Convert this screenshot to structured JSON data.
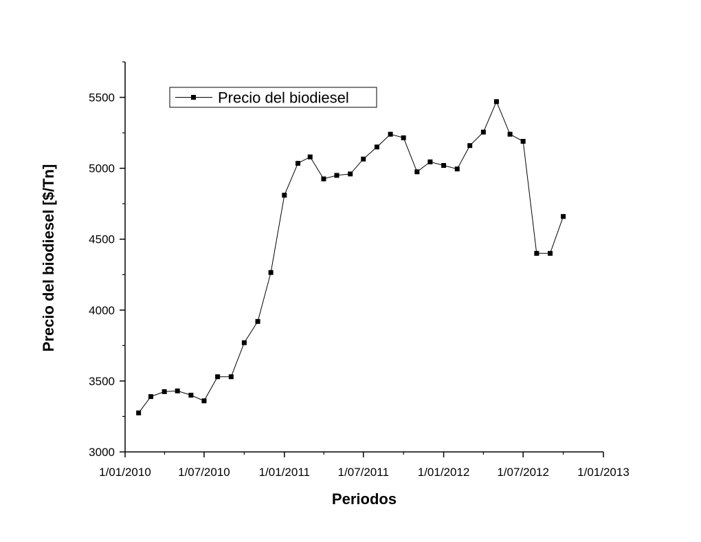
{
  "chart_data": {
    "type": "line",
    "xlabel": "Periodos",
    "ylabel": "Precio del biodiesel [$/Tn]",
    "x_ticks": [
      "1/01/2010",
      "1/07/2010",
      "1/01/2011",
      "1/07/2011",
      "1/01/2012",
      "1/07/2012",
      "1/01/2013"
    ],
    "x_tick_dates": [
      "2010-01-01",
      "2010-07-01",
      "2011-01-01",
      "2011-07-01",
      "2012-01-01",
      "2012-07-01",
      "2013-01-01"
    ],
    "y_ticks": [
      "3000",
      "3500",
      "4000",
      "4500",
      "5000",
      "5500"
    ],
    "xlim": [
      "2010-01-01",
      "2013-01-01"
    ],
    "ylim": [
      3000,
      5750
    ],
    "legend_position": "top-left",
    "series": [
      {
        "name": "Precio del biodiesel",
        "color": "#000000",
        "marker": "square",
        "x": [
          "2010-02-01",
          "2010-03-01",
          "2010-04-01",
          "2010-05-01",
          "2010-06-01",
          "2010-07-01",
          "2010-08-01",
          "2010-09-01",
          "2010-10-01",
          "2010-11-01",
          "2010-12-01",
          "2011-01-01",
          "2011-02-01",
          "2011-03-01",
          "2011-04-01",
          "2011-05-01",
          "2011-06-01",
          "2011-07-01",
          "2011-08-01",
          "2011-09-01",
          "2011-10-01",
          "2011-11-01",
          "2011-12-01",
          "2012-01-01",
          "2012-02-01",
          "2012-03-01",
          "2012-04-01",
          "2012-05-01",
          "2012-06-01",
          "2012-07-01",
          "2012-08-01",
          "2012-09-01",
          "2012-10-01"
        ],
        "values": [
          3275,
          3390,
          3425,
          3430,
          3400,
          3360,
          3530,
          3530,
          3770,
          3920,
          4265,
          4810,
          5035,
          5080,
          4925,
          4950,
          4960,
          5065,
          5150,
          5240,
          5215,
          4975,
          5045,
          5020,
          4995,
          5160,
          5255,
          5470,
          5240,
          5190,
          4400,
          4400,
          4660
        ]
      }
    ]
  }
}
